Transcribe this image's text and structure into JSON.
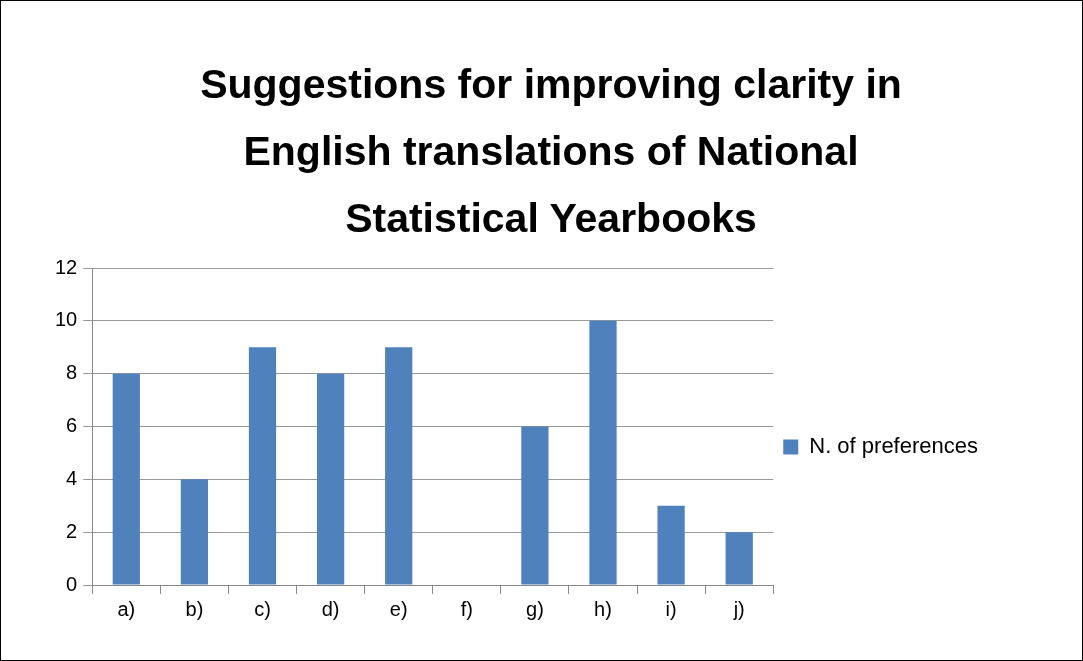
{
  "chart_data": {
    "type": "bar",
    "title": "Suggestions for improving clarity in English translations of National Statistical Yearbooks",
    "categories": [
      "a)",
      "b)",
      "c)",
      "d)",
      "e)",
      "f)",
      "g)",
      "h)",
      "i)",
      "j)"
    ],
    "series": [
      {
        "name": "N. of preferences",
        "color": "#4f81bd",
        "values": [
          8,
          4,
          9,
          8,
          9,
          0,
          6,
          10,
          3,
          2
        ]
      }
    ],
    "ylim": [
      0,
      12
    ],
    "yticks": [
      0,
      2,
      4,
      6,
      8,
      10,
      12
    ],
    "grid": "y",
    "legend": "right"
  }
}
